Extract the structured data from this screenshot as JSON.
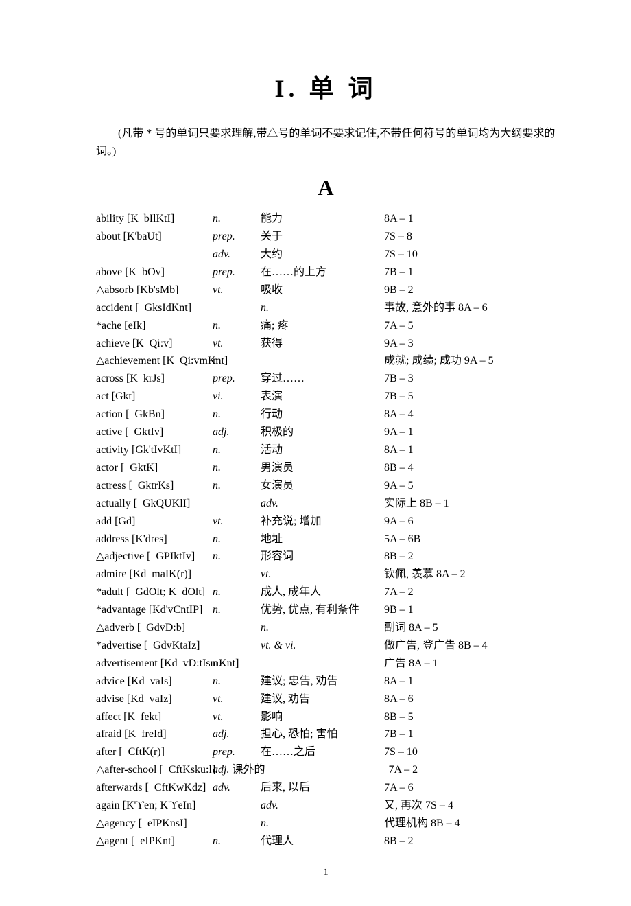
{
  "title": "I.  单  词",
  "intro": "(凡带  *  号的单词只要求理解,带△号的单词不要求记住,不带任何符号的单词均为大纲要求的词。)",
  "section_letter": "A",
  "page_number": "1",
  "entries": [
    {
      "word": "ability [K bIlKtI]",
      "pos": "n.",
      "def": "能力",
      "ref": "8A – 1"
    },
    {
      "word": "about [K'baUt]",
      "pos": "prep.",
      "def": "关于",
      "ref": "7S – 8"
    },
    {
      "word": "",
      "pos": "adv.",
      "def": "大约",
      "ref": "7S – 10"
    },
    {
      "word": "above [K bOv]",
      "pos": "prep.",
      "def": "在……的上方",
      "ref": "7B – 1"
    },
    {
      "word": "△absorb [Kb'sMb]",
      "pos": "vt.",
      "def": "吸收",
      "ref": "9B – 2"
    },
    {
      "word": "accident [ GksIdKnt]",
      "pos": "",
      "pos_in_def": "n.",
      "def": "",
      "ref": "事故, 意外的事   8A – 6"
    },
    {
      "word": "*ache [eIk]",
      "pos": "n.",
      "def": "痛; 疼",
      "ref": "7A – 5"
    },
    {
      "word": "achieve [K Qi:v]",
      "pos": "vt.",
      "def": "获得",
      "ref": "9A – 3"
    },
    {
      "word": "△achievement [K Qi:vmKnt] ",
      "pos": "n.",
      "pos_nostyle": true,
      "def": "",
      "ref": "成就; 成绩; 成功 9A – 5"
    },
    {
      "word": "across [K krJs]",
      "pos": "prep.",
      "def": "穿过……",
      "ref": "7B – 3"
    },
    {
      "word": "act [Gkt]",
      "pos": "vi.",
      "def": "表演",
      "ref": "7B – 5"
    },
    {
      "word": "action [ GkBn]",
      "pos": "n.",
      "def": "行动",
      "ref": "8A – 4"
    },
    {
      "word": "active [ GktIv]",
      "pos": "adj.",
      "def": "积极的",
      "ref": "9A – 1"
    },
    {
      "word": "activity [Gk'tIvKtI]",
      "pos": "n.",
      "def": "活动",
      "ref": "8A – 1"
    },
    {
      "word": "actor [ GktK]",
      "pos": "n.",
      "def": "男演员",
      "ref": "8B – 4"
    },
    {
      "word": "actress [ GktrKs]",
      "pos": "n.",
      "def": "女演员",
      "ref": "9A – 5"
    },
    {
      "word": "actually [ GkQUKlI]",
      "pos": "",
      "pos_in_def": "adv.",
      "def": "",
      "ref": "实际上 8B – 1"
    },
    {
      "word": "add [Gd]",
      "pos": "vt.",
      "def": "补充说; 增加",
      "ref": "9A – 6"
    },
    {
      "word": "address [K'dres]",
      "pos": "n.",
      "def": "地址",
      "ref": "5A – 6B"
    },
    {
      "word": "△adjective [ GPIktIv]",
      "pos": "n.",
      "def": "形容词",
      "ref": "8B – 2"
    },
    {
      "word": "admire  [Kd maIK(r)]",
      "pos": "",
      "pos_in_def": "vt.",
      "def": "",
      "ref": "钦佩, 羡慕   8A – 2"
    },
    {
      "word": "*adult [ GdOlt; K dOlt]",
      "pos": "n.",
      "def": "成人, 成年人",
      "ref": "7A – 2"
    },
    {
      "word": "*advantage [Kd'vCntIP]",
      "pos": "n.",
      "def": "优势, 优点, 有利条件",
      "ref": "9B – 1"
    },
    {
      "word": "△adverb [ GdvD:b]",
      "pos": "",
      "pos_in_def": "n.",
      "def": "",
      "ref": "副词     8A – 5"
    },
    {
      "word": "*advertise [ GdvKtaIz]",
      "pos": "",
      "pos_in_def": "vt. & vi.",
      "def": "",
      "ref": "做广告, 登广告   8B – 4"
    },
    {
      "word": "advertisement [Kd vD:tIsmKnt] ",
      "pos": "n.",
      "pos_nostyle": true,
      "def": "",
      "ref": "广告     8A – 1"
    },
    {
      "word": "advice [Kd vaIs]",
      "pos": "n.",
      "def": "建议; 忠告, 劝告",
      "ref": "8A – 1"
    },
    {
      "word": "advise [Kd vaIz]",
      "pos": "vt.",
      "def": "建议, 劝告",
      "ref": "8A – 6"
    },
    {
      "word": "affect [K fekt]",
      "pos": "vt.",
      "def": "影响",
      "ref": "8B – 5"
    },
    {
      "word": "afraid [K freId]",
      "pos": "adj.",
      "def": "担心, 恐怕; 害怕",
      "ref": "7B – 1"
    },
    {
      "word": "after [ CftK(r)]",
      "pos": "prep.",
      "def": "在……之后",
      "ref": "7S – 10"
    },
    {
      "word": "△after-school [ CftKsku:l]",
      "pos": "adj.",
      "def_inline": " 课外的",
      "ref": "7A – 2"
    },
    {
      "word": "afterwards [ CftKwKdz]",
      "pos": "adv.",
      "def": "后来, 以后",
      "ref": "7A – 6"
    },
    {
      "word": "again [K'ϒen; K'ϒeIn]",
      "pos": "",
      "pos_in_def": "adv.",
      "def": "",
      "ref": "又, 再次        7S – 4"
    },
    {
      "word": "△agency [ eIPKnsI]",
      "pos": "",
      "pos_in_def": "n.",
      "def": "",
      "ref": "代理机构      8B – 4"
    },
    {
      "word": "△agent [ eIPKnt]",
      "pos": "n.",
      "def": "代理人",
      "ref": "8B – 2"
    }
  ]
}
